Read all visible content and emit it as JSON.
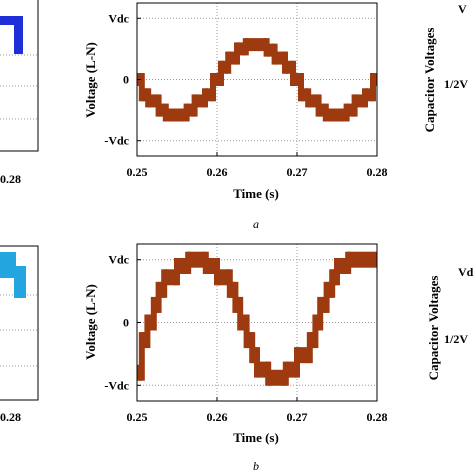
{
  "panel_labels": [
    "a",
    "b"
  ],
  "colors": {
    "center_waveform": "#9e3a10",
    "left_top_trace": "#1f2fd8",
    "left_bottom_trace": "#23a5e0",
    "grid": "#9a9a9a",
    "frame": "#000000"
  },
  "left_partial": {
    "top_tick": "0.28",
    "bottom_tick": "0.28"
  },
  "right_partial": {
    "top": {
      "ylabel": "Capacitor Voltages",
      "ticks": [
        "V",
        "1/2V"
      ]
    },
    "bottom": {
      "ylabel": "Capacitor Voltages",
      "ticks": [
        "Vd",
        "1/2V"
      ]
    }
  },
  "chart_data": [
    {
      "type": "line",
      "panel": "a",
      "xlabel": "Time (s)",
      "ylabel": "Voltage (L-N)",
      "xlim": [
        0.25,
        0.28
      ],
      "ylim": [
        -1.25,
        1.25
      ],
      "xticks": [
        "0.25",
        "0.26",
        "0.27",
        "0.28"
      ],
      "xtick_values": [
        0.25,
        0.26,
        0.27,
        0.28
      ],
      "yticks": [
        "-Vdc",
        "0",
        "Vdc"
      ],
      "ytick_values": [
        -1,
        0,
        1
      ],
      "grid": true,
      "series": [
        {
          "steps": [
            [
              0.25,
              0.2506,
              0.0
            ],
            [
              0.2506,
              0.2514,
              -0.25
            ],
            [
              0.2514,
              0.2527,
              -0.35
            ],
            [
              0.2527,
              0.2536,
              -0.5
            ],
            [
              0.2536,
              0.2562,
              -0.58
            ],
            [
              0.2562,
              0.2572,
              -0.5
            ],
            [
              0.2572,
              0.2585,
              -0.35
            ],
            [
              0.2585,
              0.2595,
              -0.25
            ],
            [
              0.2595,
              0.2605,
              0.0
            ],
            [
              0.2605,
              0.2614,
              0.2
            ],
            [
              0.2614,
              0.2625,
              0.35
            ],
            [
              0.2625,
              0.2636,
              0.5
            ],
            [
              0.2636,
              0.2662,
              0.57
            ],
            [
              0.2662,
              0.2672,
              0.48
            ],
            [
              0.2672,
              0.2685,
              0.35
            ],
            [
              0.2685,
              0.2695,
              0.2
            ],
            [
              0.2695,
              0.2705,
              0.0
            ],
            [
              0.2705,
              0.2714,
              -0.25
            ],
            [
              0.2714,
              0.2727,
              -0.35
            ],
            [
              0.2727,
              0.2736,
              -0.5
            ],
            [
              0.2736,
              0.2762,
              -0.58
            ],
            [
              0.2762,
              0.2772,
              -0.5
            ],
            [
              0.2772,
              0.2785,
              -0.35
            ],
            [
              0.2785,
              0.2795,
              -0.25
            ],
            [
              0.2795,
              0.28,
              0.0
            ]
          ]
        }
      ]
    },
    {
      "type": "line",
      "panel": "b",
      "xlabel": "Time (s)",
      "ylabel": "Voltage (L-N)",
      "xlim": [
        0.25,
        0.28
      ],
      "ylim": [
        -1.25,
        1.25
      ],
      "xticks": [
        "0.25",
        "0.26",
        "0.27",
        "0.28"
      ],
      "xtick_values": [
        0.25,
        0.26,
        0.27,
        0.28
      ],
      "yticks": [
        "-Vdc",
        "0",
        "Vdc"
      ],
      "ytick_values": [
        -1,
        0,
        1
      ],
      "grid": true,
      "series": [
        {
          "steps": [
            [
              0.25,
              0.2506,
              -0.8
            ],
            [
              0.2506,
              0.2513,
              -0.28
            ],
            [
              0.2513,
              0.2521,
              0.0
            ],
            [
              0.2521,
              0.2527,
              0.28
            ],
            [
              0.2527,
              0.2534,
              0.52
            ],
            [
              0.2534,
              0.255,
              0.72
            ],
            [
              0.255,
              0.2564,
              0.9
            ],
            [
              0.2564,
              0.2586,
              1.0
            ],
            [
              0.2586,
              0.26,
              0.9
            ],
            [
              0.26,
              0.2616,
              0.72
            ],
            [
              0.2616,
              0.2623,
              0.52
            ],
            [
              0.2623,
              0.2629,
              0.28
            ],
            [
              0.2629,
              0.2637,
              0.0
            ],
            [
              0.2637,
              0.2644,
              -0.28
            ],
            [
              0.2644,
              0.265,
              -0.52
            ],
            [
              0.265,
              0.2664,
              -0.75
            ],
            [
              0.2664,
              0.2686,
              -0.88
            ],
            [
              0.2686,
              0.27,
              -0.75
            ],
            [
              0.27,
              0.2716,
              -0.52
            ],
            [
              0.2716,
              0.2723,
              -0.28
            ],
            [
              0.2723,
              0.2729,
              0.0
            ],
            [
              0.2729,
              0.2737,
              0.28
            ],
            [
              0.2737,
              0.2744,
              0.52
            ],
            [
              0.2744,
              0.275,
              0.72
            ],
            [
              0.275,
              0.2764,
              0.9
            ],
            [
              0.2764,
              0.28,
              1.0
            ]
          ]
        }
      ]
    }
  ]
}
